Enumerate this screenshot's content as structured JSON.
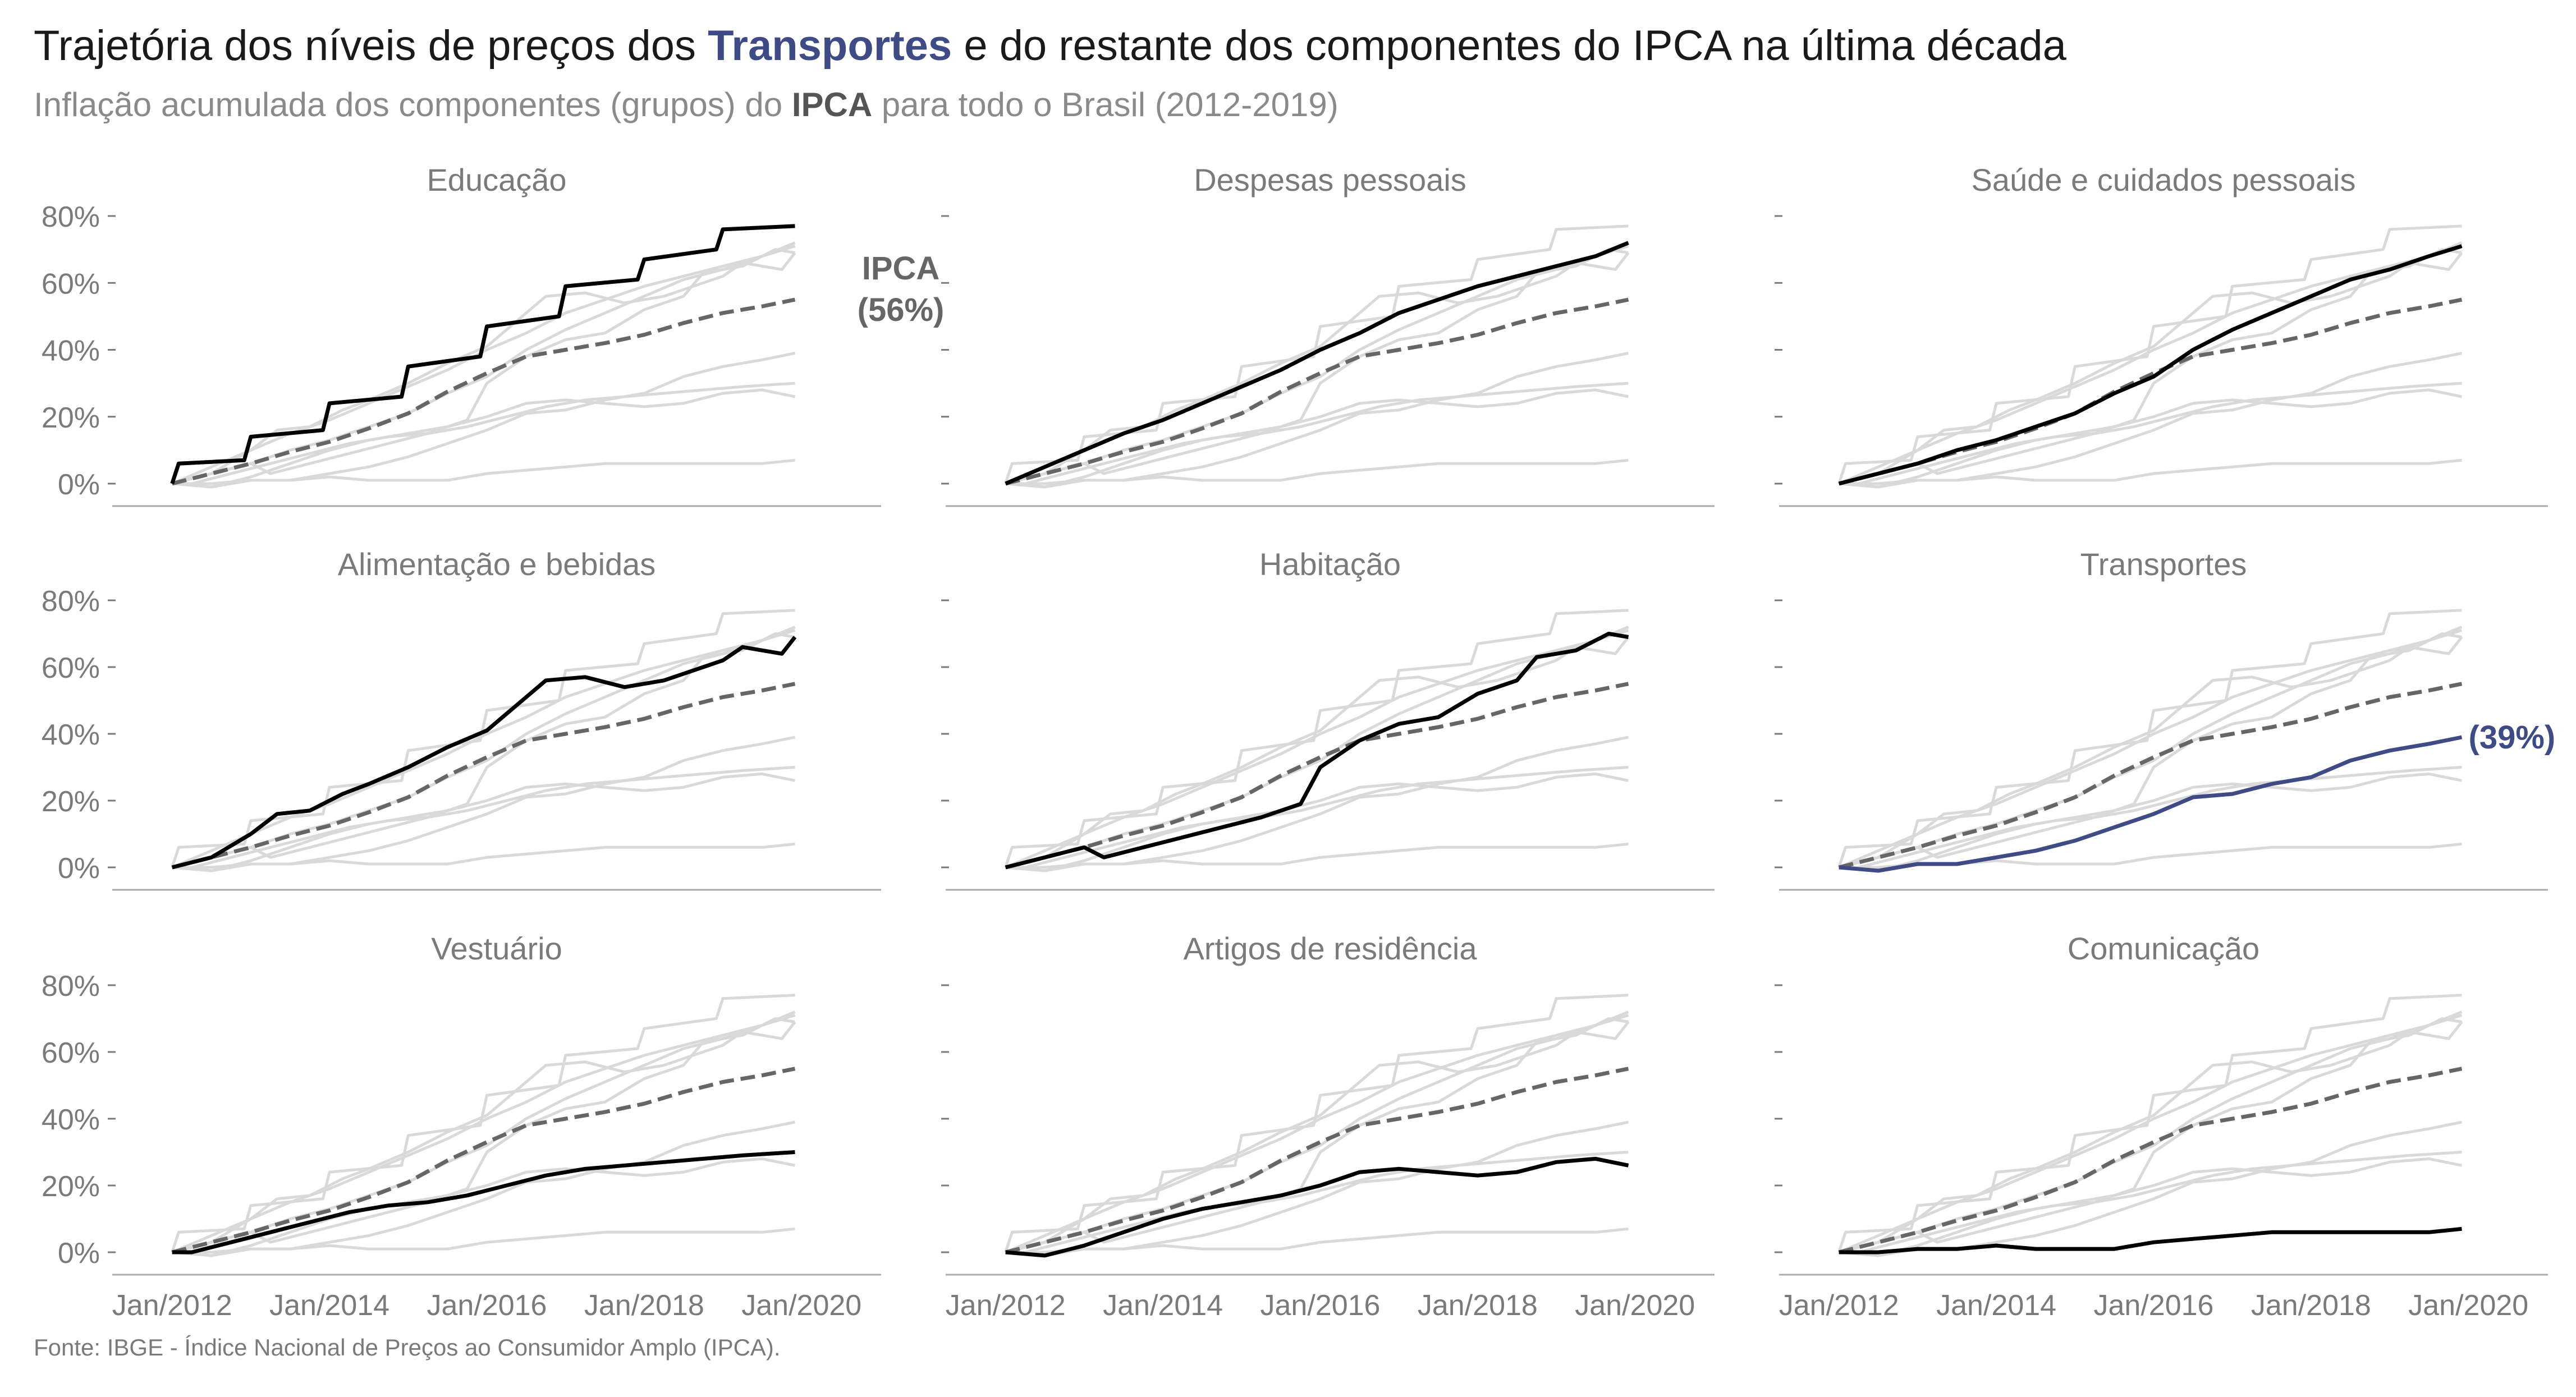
{
  "title": {
    "before": "Trajetória dos níveis de preços dos",
    "highlight": "Transportes",
    "after": "e do restante dos componentes do IPCA na última década"
  },
  "subtitle": {
    "before": "Inflação acumulada dos componentes (grupos) do",
    "bold": "IPCA",
    "after": "para todo o Brasil (2012-2019)"
  },
  "caption": "Fonte: IBGE - Índice Nacional de Preços ao Consumidor Amplo (IPCA).",
  "colors": {
    "highlight": "#3f4b85",
    "focus": "#000000",
    "context": "#d9d9d9",
    "ipca": "#666666",
    "axis_text": "#7a7a7a",
    "axis_line": "#aaaaaa"
  },
  "annotations": {
    "ipca_label": "IPCA",
    "ipca_value": "(56%)",
    "transportes_value": "(39%)"
  },
  "chart_data": {
    "type": "line",
    "layout": "small-multiples 3x3",
    "x_ticks": [
      "Jan/2012",
      "Jan/2014",
      "Jan/2016",
      "Jan/2018",
      "Jan/2020"
    ],
    "y_ticks": [
      "0%",
      "20%",
      "40%",
      "60%",
      "80%"
    ],
    "ylim": [
      0,
      80
    ],
    "xlim": [
      "2011-09",
      "2020-08"
    ],
    "grid": false,
    "reference_series": "IPCA",
    "ipca": {
      "name": "IPCA",
      "style": "dashed",
      "points": [
        [
          "2012-01",
          0
        ],
        [
          "2012-07",
          3
        ],
        [
          "2013-01",
          6
        ],
        [
          "2013-07",
          9.5
        ],
        [
          "2014-01",
          12.5
        ],
        [
          "2014-07",
          16.5
        ],
        [
          "2015-01",
          21
        ],
        [
          "2015-07",
          27.5
        ],
        [
          "2016-01",
          33
        ],
        [
          "2016-07",
          38
        ],
        [
          "2017-01",
          40
        ],
        [
          "2017-07",
          42
        ],
        [
          "2018-01",
          44.5
        ],
        [
          "2018-07",
          48
        ],
        [
          "2019-01",
          51
        ],
        [
          "2019-07",
          53
        ],
        [
          "2019-12",
          55
        ]
      ]
    },
    "panels": [
      {
        "name": "Educação",
        "points": [
          [
            "2012-01",
            0
          ],
          [
            "2012-02",
            6
          ],
          [
            "2012-12",
            7
          ],
          [
            "2013-01",
            14
          ],
          [
            "2013-12",
            16
          ],
          [
            "2014-01",
            24
          ],
          [
            "2014-12",
            26
          ],
          [
            "2015-01",
            35
          ],
          [
            "2015-12",
            38
          ],
          [
            "2016-01",
            47
          ],
          [
            "2016-12",
            50
          ],
          [
            "2017-01",
            59
          ],
          [
            "2017-12",
            61
          ],
          [
            "2018-01",
            67
          ],
          [
            "2018-12",
            70
          ],
          [
            "2019-01",
            76
          ],
          [
            "2019-12",
            77
          ]
        ]
      },
      {
        "name": "Despesas pessoais",
        "points": [
          [
            "2012-01",
            0
          ],
          [
            "2012-07",
            5
          ],
          [
            "2013-01",
            10
          ],
          [
            "2013-07",
            15
          ],
          [
            "2014-01",
            19
          ],
          [
            "2014-07",
            24
          ],
          [
            "2015-01",
            29
          ],
          [
            "2015-07",
            34
          ],
          [
            "2016-01",
            40
          ],
          [
            "2016-07",
            45
          ],
          [
            "2017-01",
            51
          ],
          [
            "2017-07",
            55
          ],
          [
            "2018-01",
            59
          ],
          [
            "2018-07",
            62
          ],
          [
            "2019-01",
            65
          ],
          [
            "2019-07",
            68
          ],
          [
            "2019-12",
            72
          ]
        ]
      },
      {
        "name": "Saúde e cuidados pessoais",
        "points": [
          [
            "2012-01",
            0
          ],
          [
            "2012-07",
            3
          ],
          [
            "2013-01",
            6
          ],
          [
            "2013-07",
            10
          ],
          [
            "2014-01",
            13
          ],
          [
            "2014-07",
            17
          ],
          [
            "2015-01",
            21
          ],
          [
            "2015-07",
            27
          ],
          [
            "2016-01",
            32
          ],
          [
            "2016-07",
            40
          ],
          [
            "2017-01",
            46
          ],
          [
            "2017-07",
            51
          ],
          [
            "2018-01",
            56
          ],
          [
            "2018-07",
            61
          ],
          [
            "2019-01",
            64
          ],
          [
            "2019-07",
            68
          ],
          [
            "2019-12",
            71
          ]
        ]
      },
      {
        "name": "Alimentação e bebidas",
        "points": [
          [
            "2012-01",
            0
          ],
          [
            "2012-07",
            3
          ],
          [
            "2013-01",
            10
          ],
          [
            "2013-05",
            16
          ],
          [
            "2013-10",
            17
          ],
          [
            "2014-03",
            22
          ],
          [
            "2014-07",
            25
          ],
          [
            "2015-01",
            30
          ],
          [
            "2015-07",
            36
          ],
          [
            "2016-01",
            41
          ],
          [
            "2016-07",
            51
          ],
          [
            "2016-10",
            56
          ],
          [
            "2017-04",
            57
          ],
          [
            "2017-10",
            54
          ],
          [
            "2018-04",
            56
          ],
          [
            "2018-07",
            58
          ],
          [
            "2019-01",
            62
          ],
          [
            "2019-04",
            66
          ],
          [
            "2019-10",
            64
          ],
          [
            "2019-12",
            69
          ]
        ]
      },
      {
        "name": "Habitação",
        "points": [
          [
            "2012-01",
            0
          ],
          [
            "2012-07",
            3
          ],
          [
            "2013-01",
            6
          ],
          [
            "2013-04",
            3
          ],
          [
            "2013-10",
            6
          ],
          [
            "2014-04",
            9
          ],
          [
            "2014-10",
            12
          ],
          [
            "2015-04",
            15
          ],
          [
            "2015-10",
            19
          ],
          [
            "2016-01",
            30
          ],
          [
            "2016-07",
            38
          ],
          [
            "2017-01",
            43
          ],
          [
            "2017-07",
            45
          ],
          [
            "2018-01",
            52
          ],
          [
            "2018-07",
            56
          ],
          [
            "2018-10",
            63
          ],
          [
            "2019-04",
            65
          ],
          [
            "2019-09",
            70
          ],
          [
            "2019-12",
            69
          ]
        ]
      },
      {
        "name": "Transportes",
        "points": [
          [
            "2012-01",
            0
          ],
          [
            "2012-07",
            -1
          ],
          [
            "2013-01",
            1
          ],
          [
            "2013-07",
            1
          ],
          [
            "2014-01",
            3
          ],
          [
            "2014-07",
            5
          ],
          [
            "2015-01",
            8
          ],
          [
            "2015-07",
            12
          ],
          [
            "2016-01",
            16
          ],
          [
            "2016-07",
            21
          ],
          [
            "2017-01",
            22
          ],
          [
            "2017-07",
            25
          ],
          [
            "2018-01",
            27
          ],
          [
            "2018-07",
            32
          ],
          [
            "2019-01",
            35
          ],
          [
            "2019-07",
            37
          ],
          [
            "2019-12",
            39
          ]
        ]
      },
      {
        "name": "Vestuário",
        "points": [
          [
            "2012-01",
            0
          ],
          [
            "2012-04",
            0
          ],
          [
            "2012-10",
            3
          ],
          [
            "2013-04",
            6
          ],
          [
            "2013-10",
            9
          ],
          [
            "2014-04",
            12
          ],
          [
            "2014-10",
            14
          ],
          [
            "2015-04",
            15
          ],
          [
            "2015-10",
            17
          ],
          [
            "2016-04",
            20
          ],
          [
            "2016-10",
            23
          ],
          [
            "2017-04",
            25
          ],
          [
            "2017-10",
            26
          ],
          [
            "2018-04",
            27
          ],
          [
            "2018-10",
            28
          ],
          [
            "2019-04",
            29
          ],
          [
            "2019-12",
            30
          ]
        ]
      },
      {
        "name": "Artigos de residência",
        "points": [
          [
            "2012-01",
            0
          ],
          [
            "2012-07",
            -1
          ],
          [
            "2013-01",
            2
          ],
          [
            "2013-07",
            6
          ],
          [
            "2014-01",
            10
          ],
          [
            "2014-07",
            13
          ],
          [
            "2015-01",
            15
          ],
          [
            "2015-07",
            17
          ],
          [
            "2016-01",
            20
          ],
          [
            "2016-07",
            24
          ],
          [
            "2017-01",
            25
          ],
          [
            "2017-07",
            24
          ],
          [
            "2018-01",
            23
          ],
          [
            "2018-07",
            24
          ],
          [
            "2019-01",
            27
          ],
          [
            "2019-07",
            28
          ],
          [
            "2019-12",
            26
          ]
        ]
      },
      {
        "name": "Comunicação",
        "points": [
          [
            "2012-01",
            0
          ],
          [
            "2012-07",
            0
          ],
          [
            "2013-01",
            1
          ],
          [
            "2013-07",
            1
          ],
          [
            "2014-01",
            2
          ],
          [
            "2014-07",
            1
          ],
          [
            "2015-01",
            1
          ],
          [
            "2015-07",
            1
          ],
          [
            "2016-01",
            3
          ],
          [
            "2016-07",
            4
          ],
          [
            "2017-01",
            5
          ],
          [
            "2017-07",
            6
          ],
          [
            "2018-01",
            6
          ],
          [
            "2018-07",
            6
          ],
          [
            "2019-01",
            6
          ],
          [
            "2019-07",
            6
          ],
          [
            "2019-12",
            7
          ]
        ]
      }
    ]
  }
}
